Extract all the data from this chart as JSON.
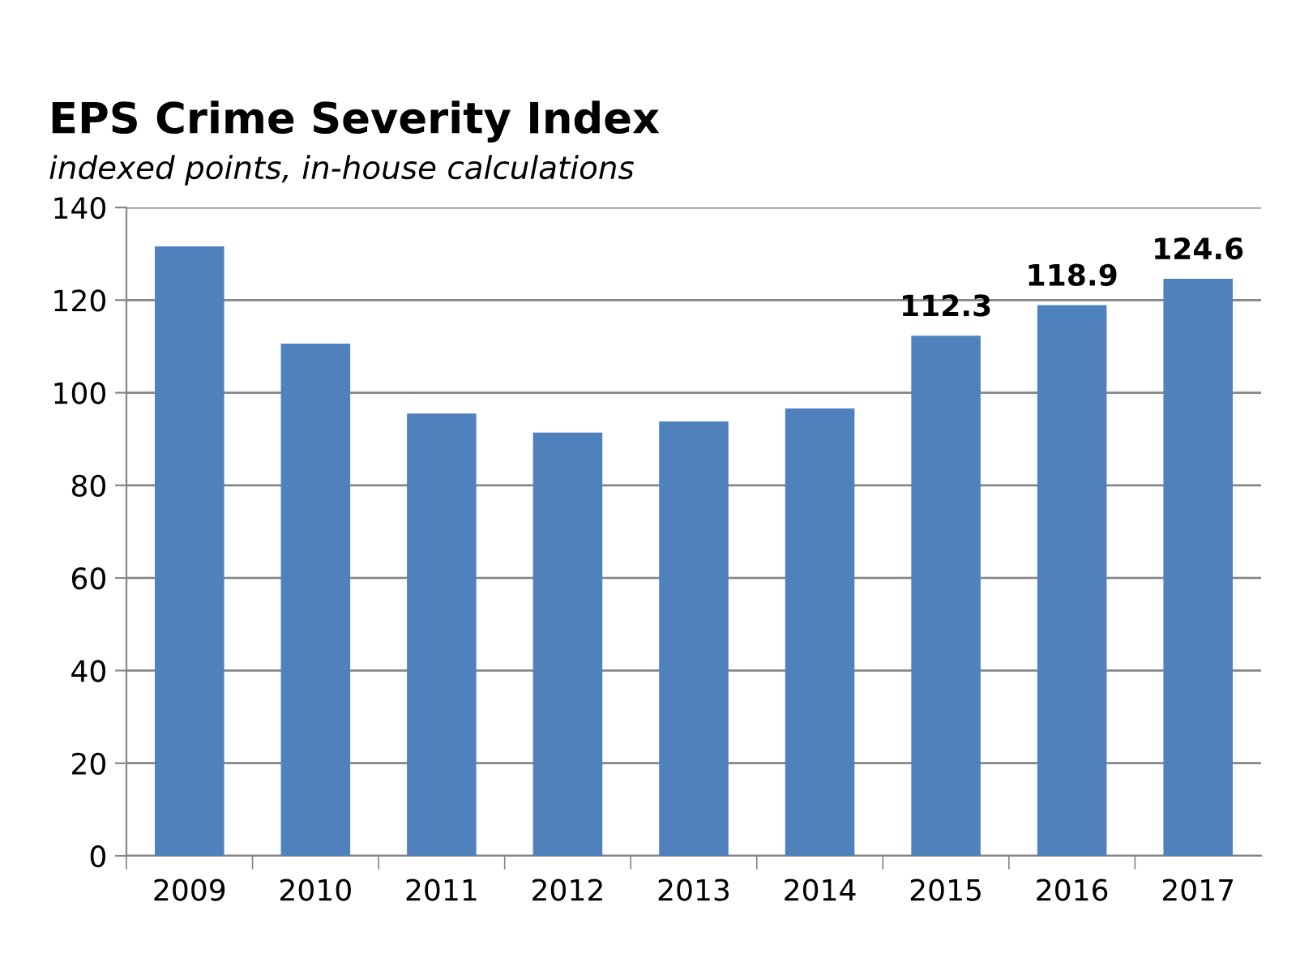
{
  "chart_data": {
    "type": "bar",
    "title": "EPS Crime Severity Index",
    "subtitle": "indexed points, in-house calculations",
    "categories": [
      "2009",
      "2010",
      "2011",
      "2012",
      "2013",
      "2014",
      "2015",
      "2016",
      "2017"
    ],
    "values": [
      131.6,
      110.6,
      95.5,
      91.4,
      93.8,
      96.6,
      112.3,
      118.9,
      124.6
    ],
    "value_labels": [
      null,
      null,
      null,
      null,
      null,
      null,
      "112.3",
      "118.9",
      "124.6"
    ],
    "color": "#4f81bd",
    "ylim": [
      0,
      140
    ],
    "yticks": [
      0,
      20,
      40,
      60,
      80,
      100,
      120,
      140
    ],
    "grid": "y",
    "legend": false
  }
}
